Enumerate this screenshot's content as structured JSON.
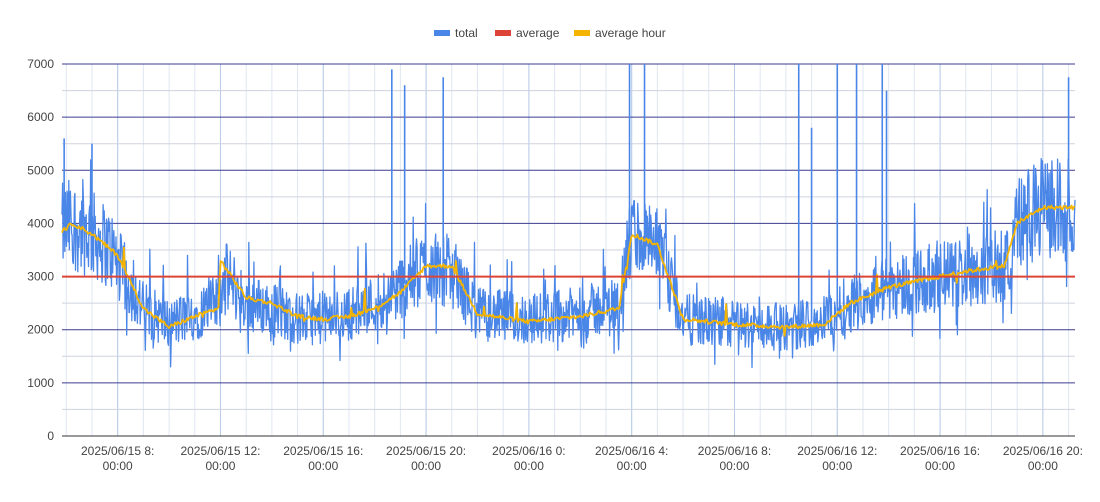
{
  "chart_data": {
    "type": "line",
    "legend_position": "top-center",
    "grid": true,
    "ylim": [
      0,
      7000
    ],
    "y_ticks": [
      0,
      1000,
      2000,
      3000,
      4000,
      5000,
      6000,
      7000
    ],
    "y_tick_labels": [
      "0",
      "1000",
      "2000",
      "3000",
      "4000",
      "5000",
      "6000",
      "7000"
    ],
    "x_range": [
      "2025/06/15 05:50",
      "2025/06/16 21:15"
    ],
    "x_ticks": [
      {
        "datetime": "2025/06/15 08:00",
        "line1": "2025/06/15 8:",
        "line2": "00:00"
      },
      {
        "datetime": "2025/06/15 12:00",
        "line1": "2025/06/15 12:",
        "line2": "00:00"
      },
      {
        "datetime": "2025/06/15 16:00",
        "line1": "2025/06/15 16:",
        "line2": "00:00"
      },
      {
        "datetime": "2025/06/15 20:00",
        "line1": "2025/06/15 20:",
        "line2": "00:00"
      },
      {
        "datetime": "2025/06/16 00:00",
        "line1": "2025/06/16 0:",
        "line2": "00:00"
      },
      {
        "datetime": "2025/06/16 04:00",
        "line1": "2025/06/16 4:",
        "line2": "00:00"
      },
      {
        "datetime": "2025/06/16 08:00",
        "line1": "2025/06/16 8:",
        "line2": "00:00"
      },
      {
        "datetime": "2025/06/16 12:00",
        "line1": "2025/06/16 12:",
        "line2": "00:00"
      },
      {
        "datetime": "2025/06/16 16:00",
        "line1": "2025/06/16 16:",
        "line2": "00:00"
      },
      {
        "datetime": "2025/06/16 20:00",
        "line1": "2025/06/16 20:",
        "line2": "00:00"
      }
    ],
    "series": [
      {
        "name": "total",
        "color": "#4a86e8",
        "style": "noisy",
        "note_values_are_approximate_trend": true,
        "x": [
          "2025/06/15 05:50",
          "2025/06/15 06:10",
          "2025/06/15 07:00",
          "2025/06/15 07:45",
          "2025/06/15 08:15",
          "2025/06/15 09:00",
          "2025/06/15 10:00",
          "2025/06/15 11:00",
          "2025/06/15 11:55",
          "2025/06/15 12:15",
          "2025/06/15 13:00",
          "2025/06/15 14:00",
          "2025/06/15 15:00",
          "2025/06/15 16:00",
          "2025/06/15 17:00",
          "2025/06/15 18:00",
          "2025/06/15 19:00",
          "2025/06/15 20:00",
          "2025/06/15 21:00",
          "2025/06/15 22:00",
          "2025/06/16 00:00",
          "2025/06/16 02:00",
          "2025/06/16 03:30",
          "2025/06/16 04:00",
          "2025/06/16 05:00",
          "2025/06/16 06:00",
          "2025/06/16 08:00",
          "2025/06/16 10:00",
          "2025/06/16 11:30",
          "2025/06/16 12:30",
          "2025/06/16 14:00",
          "2025/06/16 15:00",
          "2025/06/16 16:00",
          "2025/06/16 17:00",
          "2025/06/16 18:30",
          "2025/06/16 19:00",
          "2025/06/16 20:00",
          "2025/06/16 21:15"
        ],
        "y": [
          3900,
          4000,
          3800,
          3500,
          3000,
          2400,
          2100,
          2300,
          2500,
          3000,
          2500,
          2400,
          2200,
          2200,
          2300,
          2500,
          2800,
          3200,
          3100,
          2300,
          2200,
          2300,
          2500,
          3800,
          3500,
          2200,
          2100,
          2050,
          2200,
          2500,
          2800,
          2900,
          3000,
          3100,
          3200,
          4000,
          4300,
          4300
        ],
        "spikes": [
          {
            "x": "2025/06/15 05:55",
            "y": 5600
          },
          {
            "x": "2025/06/15 07:00",
            "y": 5500
          },
          {
            "x": "2025/06/15 18:40",
            "y": 6900
          },
          {
            "x": "2025/06/15 19:10",
            "y": 6600
          },
          {
            "x": "2025/06/15 20:40",
            "y": 6750
          },
          {
            "x": "2025/06/16 03:55",
            "y": 7000
          },
          {
            "x": "2025/06/16 04:30",
            "y": 7000
          },
          {
            "x": "2025/06/16 10:30",
            "y": 7000
          },
          {
            "x": "2025/06/16 11:00",
            "y": 5800
          },
          {
            "x": "2025/06/16 12:00",
            "y": 7000
          },
          {
            "x": "2025/06/16 12:45",
            "y": 7000
          },
          {
            "x": "2025/06/16 13:45",
            "y": 7000
          },
          {
            "x": "2025/06/16 13:55",
            "y": 6500
          },
          {
            "x": "2025/06/16 21:00",
            "y": 6750
          }
        ]
      },
      {
        "name": "average",
        "color": "#db4437",
        "style": "flat",
        "x": [
          "2025/06/15 05:50",
          "2025/06/16 21:15"
        ],
        "y": [
          3000,
          3000
        ]
      },
      {
        "name": "average hour",
        "color": "#f4b400",
        "style": "step",
        "x": [
          "2025/06/15 05:50",
          "2025/06/15 06:15",
          "2025/06/15 07:00",
          "2025/06/15 07:45",
          "2025/06/15 08:00",
          "2025/06/15 09:00",
          "2025/06/15 10:00",
          "2025/06/15 11:00",
          "2025/06/15 11:55",
          "2025/06/15 12:00",
          "2025/06/15 13:00",
          "2025/06/15 14:00",
          "2025/06/15 15:00",
          "2025/06/15 16:00",
          "2025/06/15 17:00",
          "2025/06/15 18:00",
          "2025/06/15 19:00",
          "2025/06/15 20:00",
          "2025/06/15 21:00",
          "2025/06/15 22:00",
          "2025/06/16 00:00",
          "2025/06/16 02:00",
          "2025/06/16 03:30",
          "2025/06/16 04:00",
          "2025/06/16 05:00",
          "2025/06/16 06:00",
          "2025/06/16 08:00",
          "2025/06/16 10:00",
          "2025/06/16 11:30",
          "2025/06/16 12:30",
          "2025/06/16 14:00",
          "2025/06/16 15:00",
          "2025/06/16 16:00",
          "2025/06/16 17:00",
          "2025/06/16 18:30",
          "2025/06/16 19:00",
          "2025/06/16 20:00",
          "2025/06/16 21:15"
        ],
        "y": [
          3850,
          4000,
          3800,
          3500,
          3400,
          2400,
          2050,
          2250,
          2400,
          3300,
          2600,
          2500,
          2250,
          2200,
          2250,
          2400,
          2700,
          3200,
          3200,
          2300,
          2150,
          2250,
          2400,
          3800,
          3600,
          2200,
          2100,
          2050,
          2100,
          2500,
          2800,
          2900,
          3000,
          3100,
          3200,
          4000,
          4300,
          4300
        ]
      }
    ]
  }
}
